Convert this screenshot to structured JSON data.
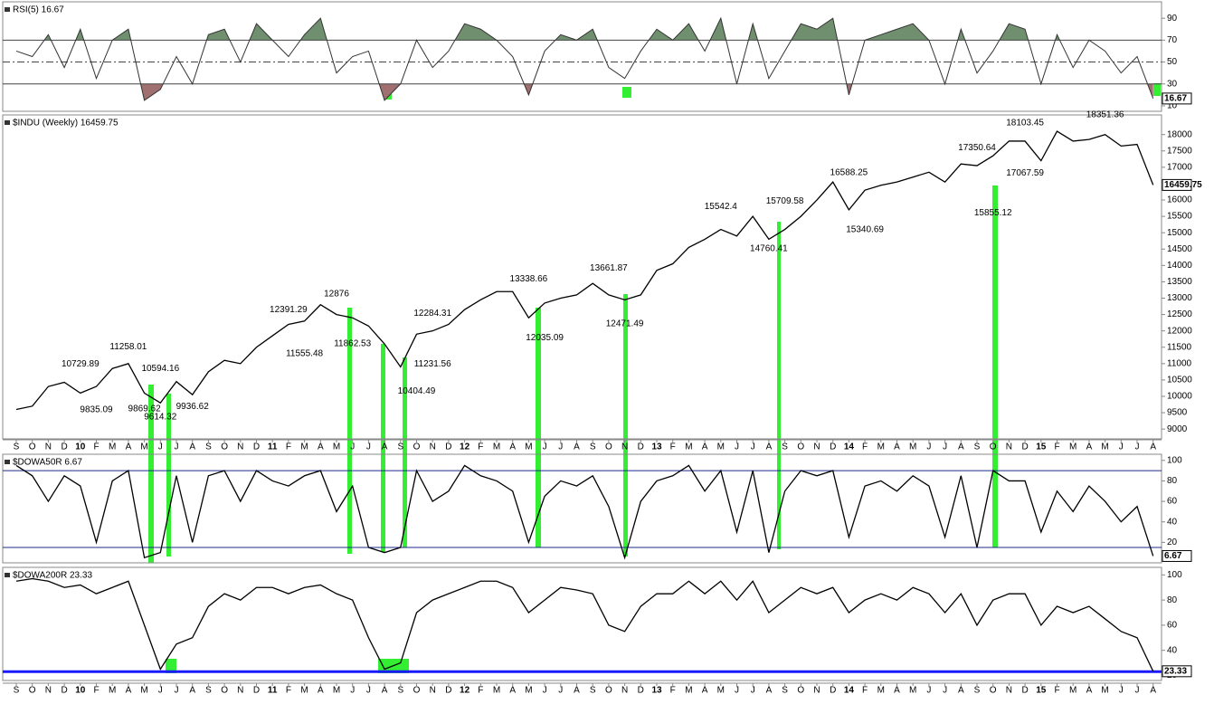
{
  "chart_data": [
    {
      "type": "line",
      "title": "RSI(5) 16.67",
      "last_value": 16.67,
      "color": "#333333",
      "values": [
        60,
        55,
        75,
        45,
        80,
        35,
        70,
        80,
        15,
        25,
        55,
        30,
        75,
        80,
        50,
        85,
        70,
        55,
        75,
        90,
        40,
        55,
        60,
        15,
        30,
        70,
        45,
        60,
        85,
        80,
        70,
        55,
        20,
        60,
        75,
        70,
        80,
        45,
        35,
        60,
        80,
        70,
        85,
        60,
        90,
        30,
        85,
        35,
        60,
        85,
        80,
        90,
        20,
        70,
        75,
        80,
        85,
        70,
        30,
        80,
        40,
        60,
        85,
        80,
        30,
        75,
        45,
        70,
        60,
        40,
        55,
        16.67
      ],
      "ylim": [
        5,
        105
      ],
      "yticks": [
        10,
        30,
        50,
        70,
        90
      ],
      "reference_lines": [
        30,
        50,
        70
      ],
      "upper_fill": "#6f8f6f",
      "lower_fill": "#a07070"
    },
    {
      "type": "line",
      "title": "$INDU (Weekly) 16459.75",
      "last_value": 16459.75,
      "color": "#000000",
      "categories": [
        "S",
        "O",
        "N",
        "D",
        "10",
        "F",
        "M",
        "A",
        "M",
        "J",
        "J",
        "A",
        "S",
        "O",
        "N",
        "D",
        "11",
        "F",
        "M",
        "A",
        "M",
        "J",
        "J",
        "A",
        "S",
        "O",
        "N",
        "D",
        "12",
        "F",
        "M",
        "A",
        "M",
        "J",
        "J",
        "A",
        "S",
        "O",
        "N",
        "D",
        "13",
        "F",
        "M",
        "A",
        "M",
        "J",
        "J",
        "A",
        "S",
        "O",
        "N",
        "D",
        "14",
        "F",
        "M",
        "A",
        "M",
        "J",
        "J",
        "A",
        "S",
        "O",
        "N",
        "D",
        "15",
        "F",
        "M",
        "A",
        "M",
        "J",
        "J",
        "A"
      ],
      "values": [
        9600,
        9700,
        10300,
        10430,
        10100,
        10300,
        10850,
        11000,
        10100,
        9800,
        10450,
        10050,
        10750,
        11100,
        11000,
        11500,
        11850,
        12200,
        12300,
        12800,
        12500,
        12400,
        12150,
        11600,
        10900,
        11900,
        12000,
        12200,
        12650,
        12950,
        13200,
        13200,
        12400,
        12850,
        13000,
        13100,
        13450,
        13100,
        12950,
        13100,
        13850,
        14050,
        14550,
        14800,
        15100,
        14900,
        15500,
        14800,
        15100,
        15500,
        16000,
        16550,
        15700,
        16300,
        16450,
        16550,
        16700,
        16850,
        16550,
        17100,
        17050,
        17350,
        17800,
        17800,
        17200,
        18100,
        17800,
        17850,
        18000,
        17650,
        17700,
        16459.75
      ],
      "ylim": [
        8700,
        18600
      ],
      "yticks": [
        9000,
        9500,
        10000,
        10500,
        11000,
        11500,
        12000,
        12500,
        13000,
        13500,
        14000,
        14500,
        15000,
        15500,
        16000,
        16500,
        17000,
        17500,
        18000
      ],
      "annotations": [
        {
          "x": 4,
          "value": 10729.89
        },
        {
          "x": 5,
          "value": 9835.09
        },
        {
          "x": 7,
          "value": 11258.01
        },
        {
          "x": 8,
          "value": 9869.62
        },
        {
          "x": 9,
          "value": 10594.16
        },
        {
          "x": 9,
          "value": 9614.32
        },
        {
          "x": 11,
          "value": 9936.62
        },
        {
          "x": 17,
          "value": 12391.29
        },
        {
          "x": 18,
          "value": 11555.48
        },
        {
          "x": 20,
          "value": 12876.0
        },
        {
          "x": 21,
          "value": 11862.53
        },
        {
          "x": 26,
          "value": 12284.31
        },
        {
          "x": 25,
          "value": 10404.49
        },
        {
          "x": 26,
          "value": 11231.56
        },
        {
          "x": 32,
          "value": 13338.66
        },
        {
          "x": 33,
          "value": 12035.09
        },
        {
          "x": 37,
          "value": 13661.87
        },
        {
          "x": 38,
          "value": 12471.49
        },
        {
          "x": 44,
          "value": 15542.4
        },
        {
          "x": 48,
          "value": 15709.58
        },
        {
          "x": 47,
          "value": 14760.41
        },
        {
          "x": 52,
          "value": 16588.25
        },
        {
          "x": 53,
          "value": 15340.69
        },
        {
          "x": 60,
          "value": 17350.64
        },
        {
          "x": 61,
          "value": 15855.12
        },
        {
          "x": 63,
          "value": 18103.45
        },
        {
          "x": 63,
          "value": 17067.59
        },
        {
          "x": 68,
          "value": 18351.36
        }
      ]
    },
    {
      "type": "line",
      "title": "$DOWA50R 6.67",
      "last_value": 6.67,
      "color": "#000000",
      "values": [
        95,
        85,
        60,
        85,
        75,
        20,
        80,
        90,
        5,
        10,
        85,
        20,
        85,
        90,
        60,
        90,
        80,
        75,
        85,
        90,
        50,
        75,
        15,
        10,
        15,
        90,
        60,
        70,
        95,
        85,
        80,
        70,
        20,
        65,
        80,
        75,
        85,
        55,
        5,
        60,
        80,
        85,
        95,
        70,
        90,
        30,
        90,
        10,
        70,
        90,
        85,
        90,
        25,
        75,
        80,
        70,
        85,
        75,
        25,
        85,
        15,
        90,
        80,
        80,
        30,
        70,
        50,
        75,
        60,
        40,
        55,
        6.67
      ],
      "ylim": [
        0,
        106
      ],
      "yticks": [
        20,
        40,
        60,
        80,
        100
      ],
      "reference_lines": [
        15,
        90
      ],
      "reference_color": "#1c2a8a"
    },
    {
      "type": "line",
      "title": "$DOWA200R 23.33",
      "last_value": 23.33,
      "color": "#000000",
      "categories": [
        "S",
        "O",
        "N",
        "D",
        "10",
        "F",
        "M",
        "A",
        "M",
        "J",
        "J",
        "A",
        "S",
        "O",
        "N",
        "D",
        "11",
        "F",
        "M",
        "A",
        "M",
        "J",
        "J",
        "A",
        "S",
        "O",
        "N",
        "D",
        "12",
        "F",
        "M",
        "A",
        "M",
        "J",
        "J",
        "A",
        "S",
        "O",
        "N",
        "D",
        "13",
        "F",
        "M",
        "A",
        "M",
        "J",
        "J",
        "A",
        "S",
        "O",
        "N",
        "D",
        "14",
        "F",
        "M",
        "A",
        "M",
        "J",
        "J",
        "A",
        "S",
        "O",
        "N",
        "D",
        "15",
        "F",
        "M",
        "A",
        "M",
        "J",
        "J",
        "A"
      ],
      "values": [
        95,
        97,
        95,
        90,
        92,
        85,
        90,
        95,
        60,
        25,
        45,
        50,
        75,
        85,
        80,
        90,
        90,
        85,
        90,
        92,
        85,
        80,
        50,
        25,
        30,
        70,
        80,
        85,
        90,
        95,
        95,
        90,
        70,
        80,
        90,
        88,
        85,
        60,
        55,
        75,
        85,
        85,
        95,
        85,
        95,
        80,
        95,
        70,
        80,
        90,
        85,
        90,
        70,
        80,
        85,
        80,
        90,
        85,
        70,
        85,
        60,
        80,
        85,
        85,
        60,
        75,
        70,
        75,
        65,
        55,
        50,
        23.33
      ],
      "ylim": [
        16,
        106
      ],
      "yticks": [
        20,
        40,
        60,
        80,
        100
      ],
      "reference_lines": [
        23
      ],
      "reference_color": "#1a1aff"
    }
  ]
}
